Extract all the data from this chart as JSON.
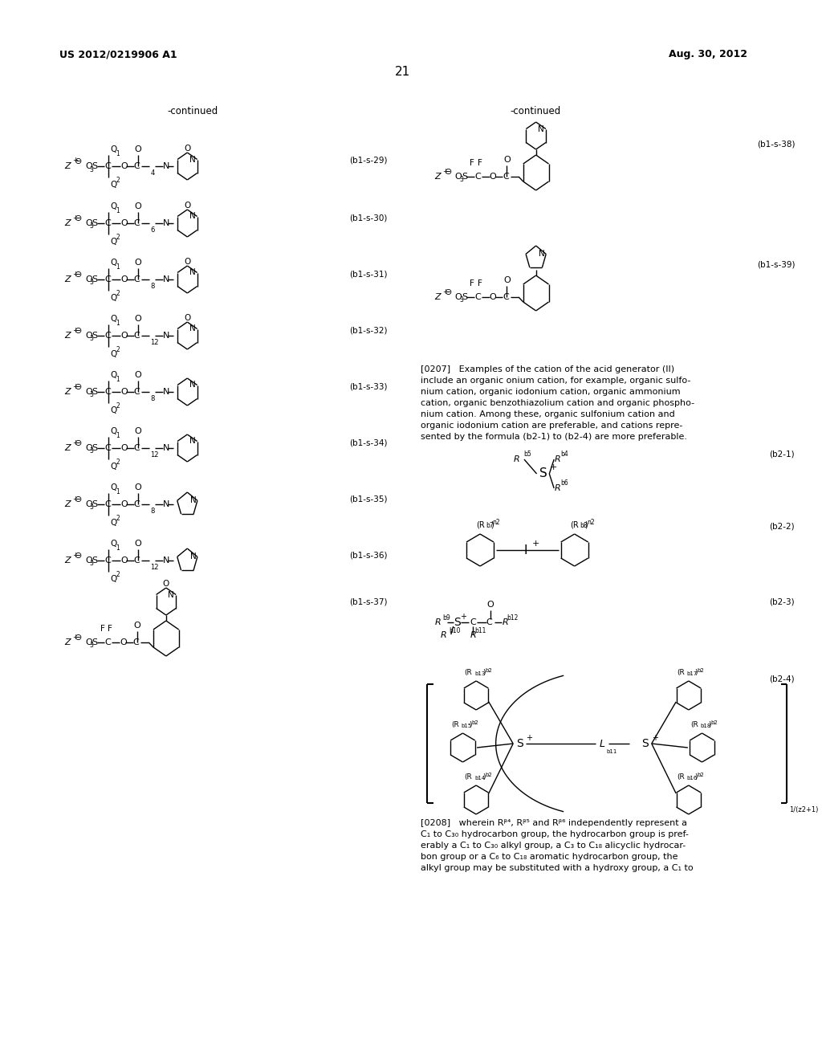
{
  "page_width": 10.24,
  "page_height": 13.2,
  "bg_color": "#ffffff",
  "header_left": "US 2012/0219906 A1",
  "header_right": "Aug. 30, 2012",
  "page_number": "21",
  "continued_left": "-continued",
  "continued_right": "-continued",
  "labels_left": [
    "(b1-s-29)",
    "(b1-s-30)",
    "(b1-s-31)",
    "(b1-s-32)",
    "(b1-s-33)",
    "(b1-s-34)",
    "(b1-s-35)",
    "(b1-s-36)",
    "(b1-s-37)"
  ],
  "labels_right": [
    "(b1-s-38)",
    "(b1-s-39)",
    "(b2-1)",
    "(b2-2)",
    "(b2-3)",
    "(b2-4)"
  ],
  "p207_lines": [
    "[0207]   Examples of the cation of the acid generator (II)",
    "include an organic onium cation, for example, organic sulfo-",
    "nium cation, organic iodonium cation, organic ammonium",
    "cation, organic benzothiazolium cation and organic phospho-",
    "nium cation. Among these, organic sulfonium cation and",
    "organic iodonium cation are preferable, and cations repre-",
    "sented by the formula (b2-1) to (b2-4) are more preferable."
  ],
  "p208_lines": [
    "[0208]   wherein Rᵝ⁴, Rᵝ⁵ and Rᵝ⁶ independently represent a",
    "C₁ to C₃₀ hydrocarbon group, the hydrocarbon group is pref-",
    "erably a C₁ to C₃₀ alkyl group, a C₃ to C₁₈ alicyclic hydrocar-",
    "bon group or a C₆ to C₁₈ aromatic hydrocarbon group, the",
    "alkyl group may be substituted with a hydroxy group, a C₁ to"
  ]
}
